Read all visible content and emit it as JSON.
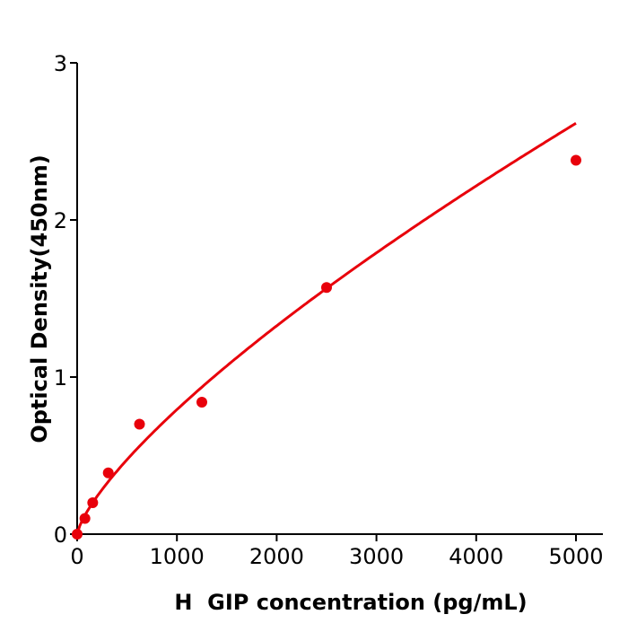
{
  "chart_data": {
    "type": "scatter",
    "title": "",
    "xlabel": "H  GIP concentration (pg/mL)",
    "ylabel": "Optical Density(450nm)",
    "xlim": [
      0,
      5250
    ],
    "ylim": [
      0,
      3
    ],
    "xticks": [
      0,
      1000,
      2000,
      3000,
      4000,
      5000
    ],
    "yticks": [
      0,
      1,
      2,
      3
    ],
    "grid": false,
    "color": "#e8000b",
    "series": [
      {
        "x": [
          0,
          78,
          156,
          312,
          625,
          1250,
          2500,
          5000
        ],
        "y": [
          0.0,
          0.1,
          0.2,
          0.39,
          0.7,
          0.84,
          1.57,
          2.38
        ],
        "fit_line": true
      }
    ]
  }
}
